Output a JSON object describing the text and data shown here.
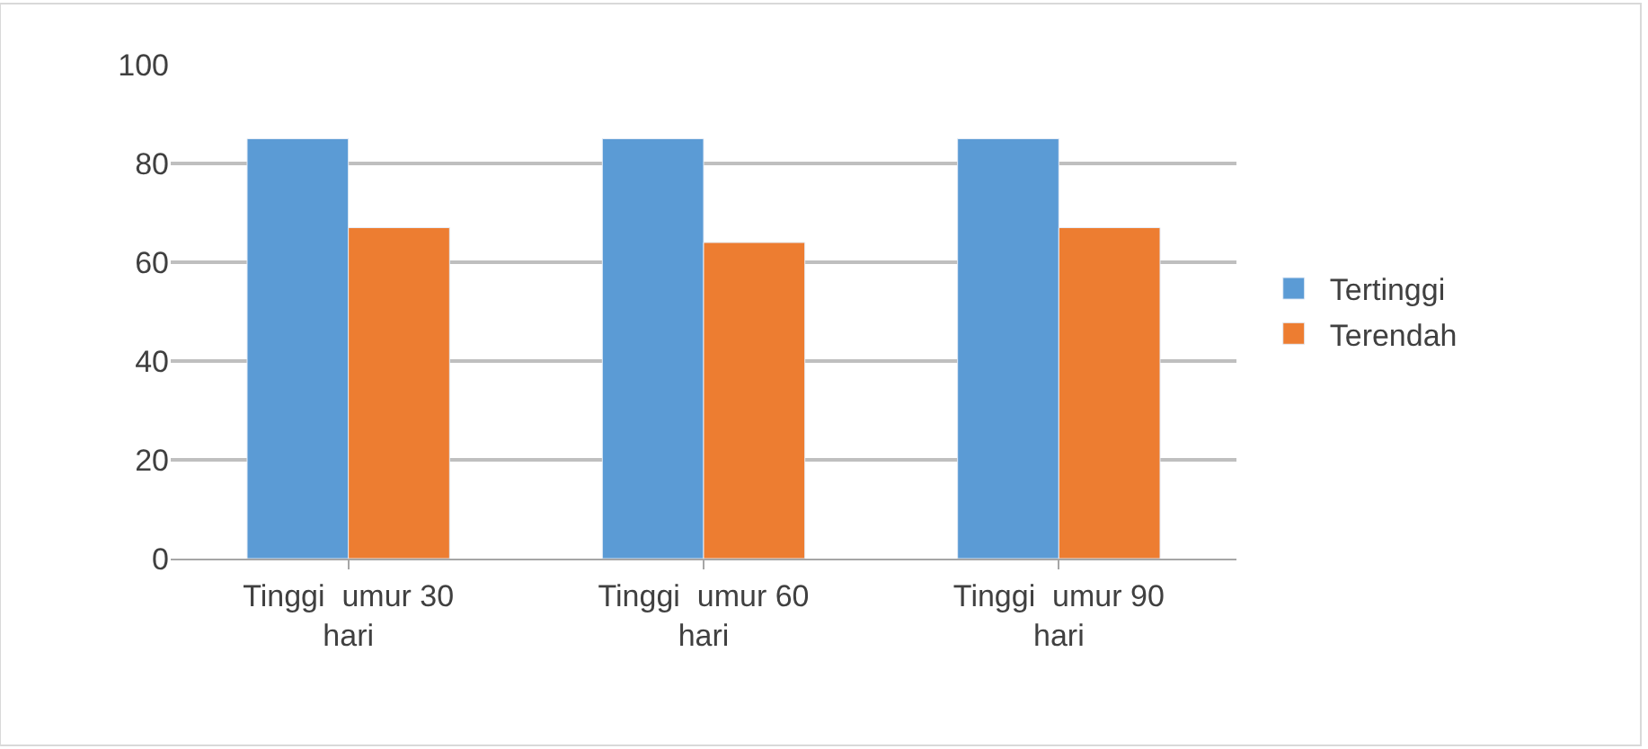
{
  "chart_data": {
    "type": "bar",
    "categories": [
      "Tinggi  umur 30 hari",
      "Tinggi  umur 60 hari",
      "Tinggi  umur 90 hari"
    ],
    "series": [
      {
        "name": "Tertinggi",
        "color": "#5b9bd5",
        "values": [
          85,
          85,
          85
        ]
      },
      {
        "name": "Terendah",
        "color": "#ed7d31",
        "values": [
          67,
          64,
          67
        ]
      }
    ],
    "ylim": [
      0,
      100
    ],
    "yticks": [
      0,
      20,
      40,
      60,
      80,
      100
    ],
    "grid": "y",
    "legend": "right"
  }
}
